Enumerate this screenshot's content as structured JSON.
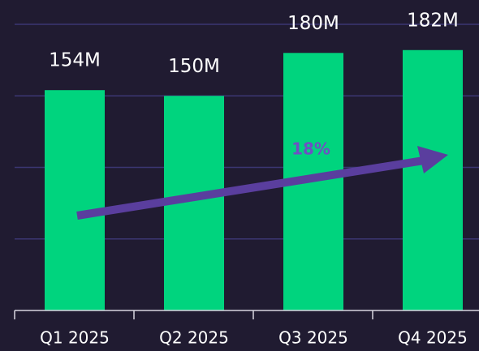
{
  "chart_data": {
    "type": "bar",
    "categories": [
      "Q1 2025",
      "Q2 2025",
      "Q3 2025",
      "Q4 2025"
    ],
    "values": [
      154,
      150,
      180,
      182
    ],
    "value_labels": [
      "154M",
      "150M",
      "180M",
      "182M"
    ],
    "color": "#00d47e",
    "ylim": [
      0,
      217
    ],
    "yticks": [
      0,
      50,
      100,
      150,
      200
    ],
    "grid": true,
    "annotation": "18%"
  }
}
